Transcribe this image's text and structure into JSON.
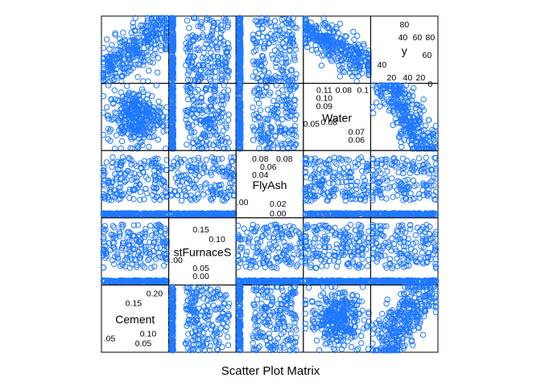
{
  "chart_data": {
    "type": "scatter",
    "title": "",
    "xlabel": "Scatter Plot Matrix",
    "variables": [
      "Cement",
      "BlastFurnaceSlag",
      "FlyAsh",
      "Water",
      "y"
    ],
    "diagonal_labels": [
      "Cement",
      "stFurnaceS",
      "FlyAsh",
      "Water",
      "y"
    ],
    "point_color": "#1f78ff",
    "axis_color": "#000000",
    "diagonal_ticks": {
      "Cement": {
        "range": [
          0.03,
          0.27
        ],
        "upper_ticks": [
          "0.15",
          "0.20"
        ],
        "lower_ticks": [
          ".05",
          "0.05",
          "0.10"
        ]
      },
      "BlastFurnaceSlag": {
        "range": [
          -0.02,
          0.18
        ],
        "upper_ticks": [
          "0.15",
          "0.10"
        ],
        "lower_ticks": [
          ".00",
          "0.00",
          "0.05"
        ]
      },
      "FlyAsh": {
        "range": [
          -0.005,
          0.1
        ],
        "upper_ticks": [
          "0.08",
          "0.06",
          "0.04",
          "0.08"
        ],
        "lower_ticks": [
          ".00",
          "0.02",
          "0.00"
        ]
      },
      "Water": {
        "range": [
          0.045,
          0.12
        ],
        "upper_ticks": [
          "0.11",
          "0.10",
          "0.09",
          "0.08",
          "0.1"
        ],
        "lower_ticks": [
          "0.05",
          "0.08",
          "0.07",
          "0.06"
        ]
      },
      "y": {
        "range": [
          -5,
          90
        ],
        "upper_ticks": [
          "80",
          "40",
          "60",
          "80",
          "60"
        ],
        "lower_ticks": [
          "40",
          "20",
          "40",
          "20",
          "0"
        ]
      }
    },
    "n_points_per_panel": 320
  }
}
